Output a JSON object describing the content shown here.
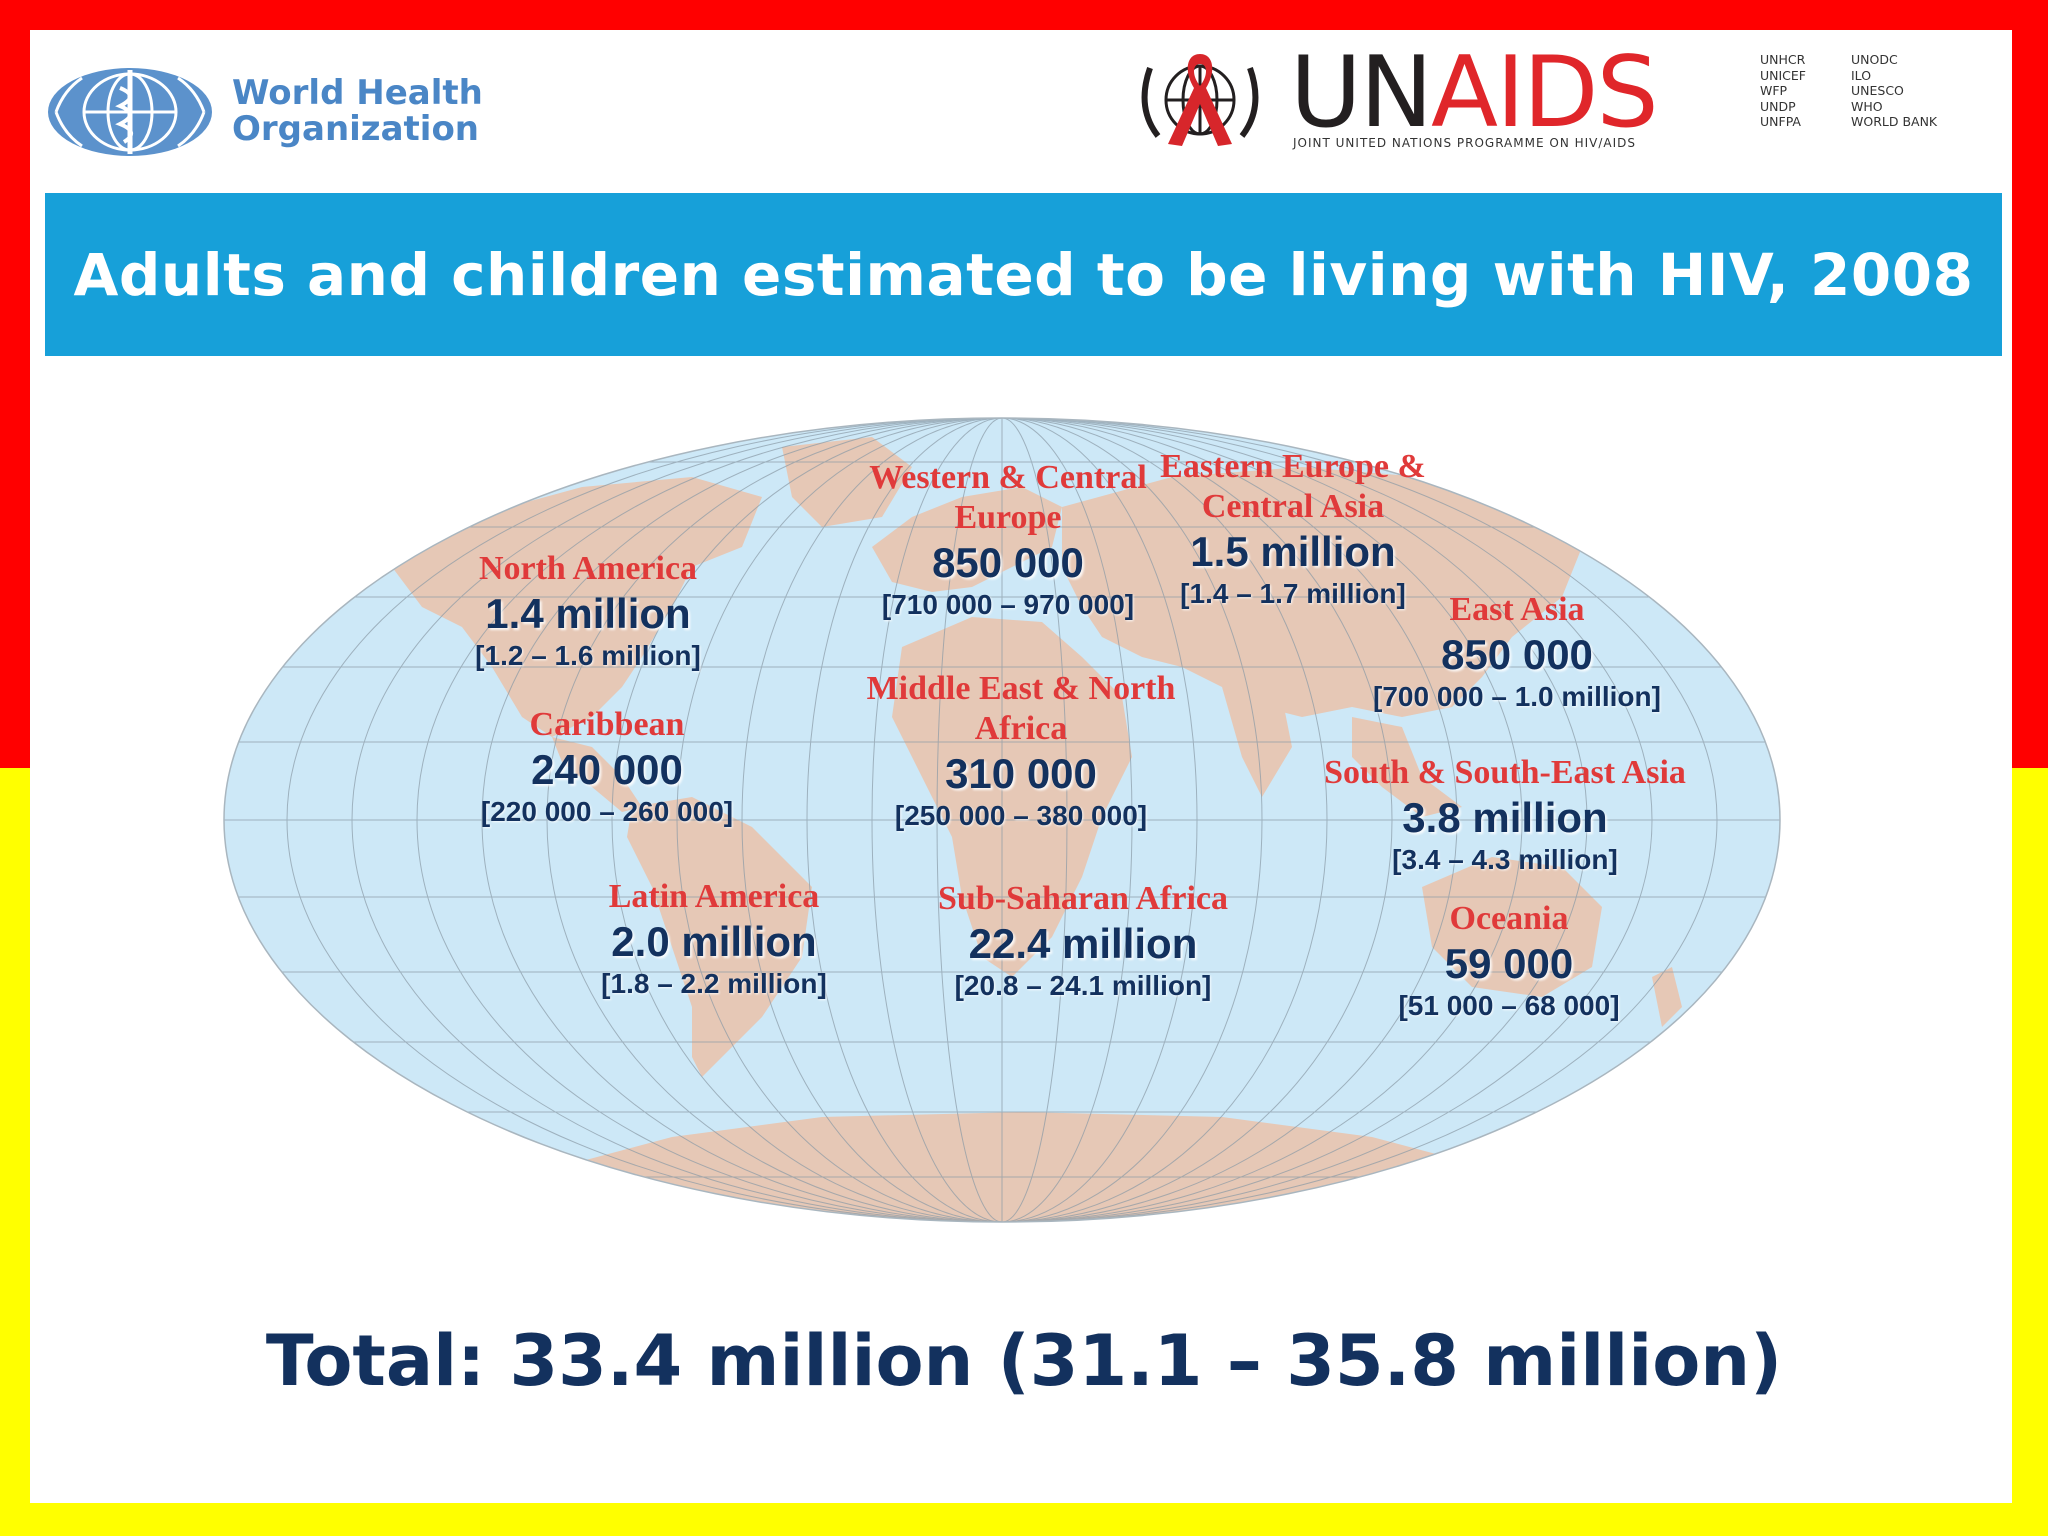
{
  "header": {
    "who_logo_lines": [
      "World Health",
      "Organization"
    ],
    "unaids_logo": {
      "word_un": "UN",
      "word_aids": "AIDS",
      "tagline": "JOINT UNITED NATIONS PROGRAMME ON HIV/AIDS",
      "cosponsors_col1": [
        "UNHCR",
        "UNICEF",
        "WFP",
        "UNDP",
        "UNFPA"
      ],
      "cosponsors_col2": [
        "UNODC",
        "ILO",
        "UNESCO",
        "WHO",
        "WORLD BANK"
      ]
    }
  },
  "title": "Adults and children estimated to be living with HIV, 2008",
  "regions": [
    {
      "id": "north-america",
      "name": "North America",
      "value": "1.4 million",
      "range": "[1.2 – 1.6 million]"
    },
    {
      "id": "caribbean",
      "name": "Caribbean",
      "value": "240 000",
      "range": "[220 000 – 260 000]"
    },
    {
      "id": "latin-america",
      "name": "Latin America",
      "value": "2.0 million",
      "range": "[1.8 – 2.2 million]"
    },
    {
      "id": "western-central-europe",
      "name": "Western & Central Europe",
      "value": "850 000",
      "range": "[710 000 – 970 000]"
    },
    {
      "id": "middle-east-north-africa",
      "name": "Middle East & North Africa",
      "value": "310 000",
      "range": "[250 000 – 380 000]"
    },
    {
      "id": "sub-saharan-africa",
      "name": "Sub-Saharan Africa",
      "value": "22.4 million",
      "range": "[20.8 – 24.1 million]"
    },
    {
      "id": "eastern-europe-central-asia",
      "name": "Eastern Europe & Central Asia",
      "value": "1.5 million",
      "range": "[1.4 – 1.7 million]"
    },
    {
      "id": "east-asia",
      "name": "East Asia",
      "value": "850 000",
      "range": "[700 000 – 1.0 million]"
    },
    {
      "id": "south-southeast-asia",
      "name": "South & South-East Asia",
      "value": "3.8 million",
      "range": "[3.4 – 4.3 million]"
    },
    {
      "id": "oceania",
      "name": "Oceania",
      "value": "59 000",
      "range": "[51 000 – 68 000]"
    }
  ],
  "total": "Total: 33.4 million (31.1 – 35.8 million)",
  "colors": {
    "border_top": "#ff0000",
    "border_bottom": "#ffff00",
    "banner": "#17a0d9",
    "region_name": "#e03a3a",
    "value_text": "#13315e",
    "ocean": "#cde8f7",
    "land": "#e6c8b6"
  }
}
